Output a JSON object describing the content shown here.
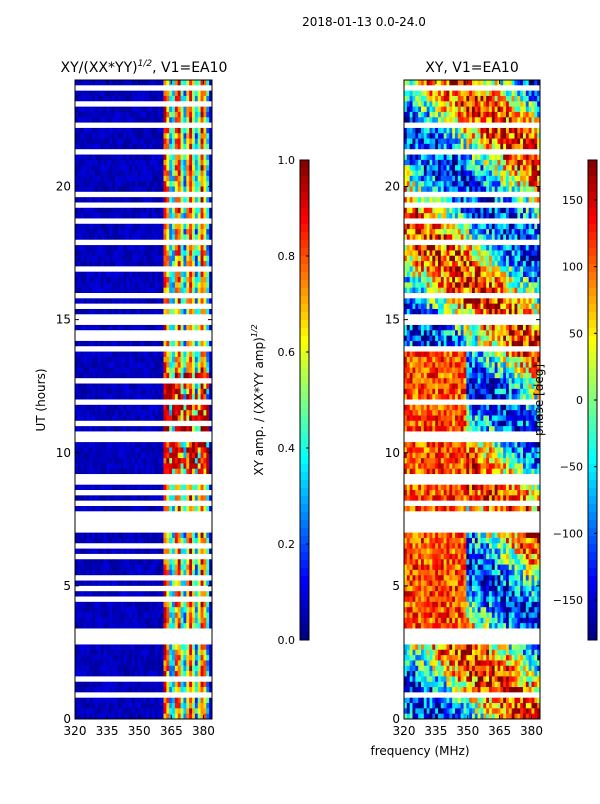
{
  "figure": {
    "suptitle": "2018-01-13 0.0-24.0",
    "xlabel": "frequency (MHz)"
  },
  "colors": {
    "jet": [
      "#00007f",
      "#0000ff",
      "#007fff",
      "#00ffff",
      "#7fff7f",
      "#ffff00",
      "#ff7f00",
      "#ff0000",
      "#7f0000"
    ],
    "gap": "#ffffff",
    "axis": "#000000"
  },
  "chart_data": [
    {
      "type": "heatmap",
      "title_main": "XY/(XX*YY)",
      "title_exp": "1/2",
      "title_tail": ", V1=EA10",
      "xlabel": "",
      "ylabel": "UT (hours)",
      "xlim": [
        320,
        384
      ],
      "ylim": [
        0,
        24
      ],
      "xticks": [
        320,
        335,
        350,
        365,
        380
      ],
      "yticks": [
        0,
        5,
        10,
        15,
        20
      ],
      "colorbar": {
        "label_main": "XY amp. / (XX*YY amp)",
        "label_exp": "1/2",
        "range": [
          0.0,
          1.0
        ],
        "ticks": [
          "0.0",
          "0.2",
          "0.4",
          "0.6",
          "0.8",
          "1.0"
        ],
        "tick_values": [
          0.0,
          0.2,
          0.4,
          0.6,
          0.8,
          1.0
        ]
      },
      "high_band_mhz": [
        361,
        383
      ],
      "gap_rows_hours": [
        23.6,
        23.1,
        22.3,
        21.4,
        19.7,
        19.4,
        18.6,
        17.8,
        16.8,
        16.0,
        15.5,
        15.0,
        14.4,
        13.9,
        12.7,
        11.9,
        11.2,
        10.6,
        9.0,
        8.5,
        8.0,
        7.6,
        7.4,
        7.1,
        6.5,
        6.1,
        5.3,
        4.9,
        4.5,
        3.3,
        3.1,
        2.9,
        2.0,
        1.5,
        0.9
      ]
    },
    {
      "type": "heatmap",
      "title_main": "XY, V1=EA10",
      "xlabel": "",
      "ylabel": "",
      "xlim": [
        320,
        384
      ],
      "ylim": [
        0,
        24
      ],
      "xticks": [
        320,
        335,
        350,
        365,
        380
      ],
      "yticks": [
        0,
        5,
        10,
        15,
        20
      ],
      "colorbar": {
        "label_main": "phase [deg]",
        "range": [
          -180,
          180
        ],
        "ticks": [
          "150",
          "100",
          "50",
          "0",
          "−50",
          "−100",
          "−150"
        ],
        "tick_values": [
          150,
          100,
          50,
          0,
          -50,
          -100,
          -150
        ]
      },
      "gap_rows_hours": [
        23.6,
        22.3,
        21.4,
        19.7,
        19.4,
        18.6,
        17.8,
        16.0,
        15.0,
        13.9,
        11.9,
        10.6,
        9.0,
        8.0,
        7.6,
        7.4,
        7.1,
        3.3,
        3.1,
        2.9,
        0.9
      ]
    }
  ]
}
